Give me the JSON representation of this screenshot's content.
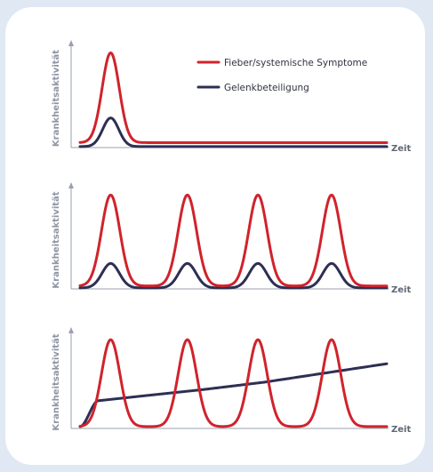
{
  "colors": {
    "background": "#dfe8f3",
    "card": "#ffffff",
    "fever": "#d0232c",
    "joint": "#2d2f54",
    "axis": "#9aa1ad",
    "axis_text": "#8d95a3"
  },
  "legend": {
    "fever": "Fieber/systemische Symptome",
    "joint": "Gelenkbeteiligung"
  },
  "chart_data": [
    {
      "type": "line",
      "ylabel": "Krankheitsaktivität",
      "xlabel": "Zeit",
      "xlim": [
        0,
        100
      ],
      "ylim": [
        0,
        1
      ],
      "legend_position": "top-right",
      "series": [
        {
          "name": "Fieber/systemische Symptome",
          "pattern": "single-peak",
          "peaks_x": [
            10
          ],
          "peak": 0.96,
          "baseline": 0.05,
          "width": 2.8
        },
        {
          "name": "Gelenkbeteiligung",
          "pattern": "single-peak",
          "peaks_x": [
            10
          ],
          "peak": 0.3,
          "baseline": 0.01,
          "width": 2.6
        }
      ]
    },
    {
      "type": "line",
      "ylabel": "Krankheitsaktivität",
      "xlabel": "Zeit",
      "xlim": [
        0,
        100
      ],
      "ylim": [
        0,
        1
      ],
      "series": [
        {
          "name": "Fieber/systemische Symptome",
          "pattern": "recurring-peaks",
          "peaks_x": [
            10,
            35,
            58,
            82
          ],
          "peak": 0.96,
          "baseline": 0.03,
          "width": 3.0
        },
        {
          "name": "Gelenkbeteiligung",
          "pattern": "recurring-peaks",
          "peaks_x": [
            10,
            35,
            58,
            82
          ],
          "peak": 0.26,
          "baseline": 0.01,
          "width": 2.8
        }
      ]
    },
    {
      "type": "line",
      "ylabel": "Krankheitsaktivität",
      "xlabel": "Zeit",
      "xlim": [
        0,
        100
      ],
      "ylim": [
        0,
        1
      ],
      "series": [
        {
          "name": "Fieber/systemische Symptome",
          "pattern": "recurring-peaks",
          "peaks_x": [
            10,
            35,
            58,
            82
          ],
          "peak": 0.96,
          "baseline": 0.02,
          "width": 3.0
        },
        {
          "name": "Gelenkbeteiligung",
          "pattern": "progressive-rise",
          "points": [
            [
              0,
              0.02
            ],
            [
              6,
              0.3
            ],
            [
              20,
              0.35
            ],
            [
              40,
              0.42
            ],
            [
              60,
              0.5
            ],
            [
              80,
              0.6
            ],
            [
              100,
              0.7
            ]
          ]
        }
      ]
    }
  ]
}
